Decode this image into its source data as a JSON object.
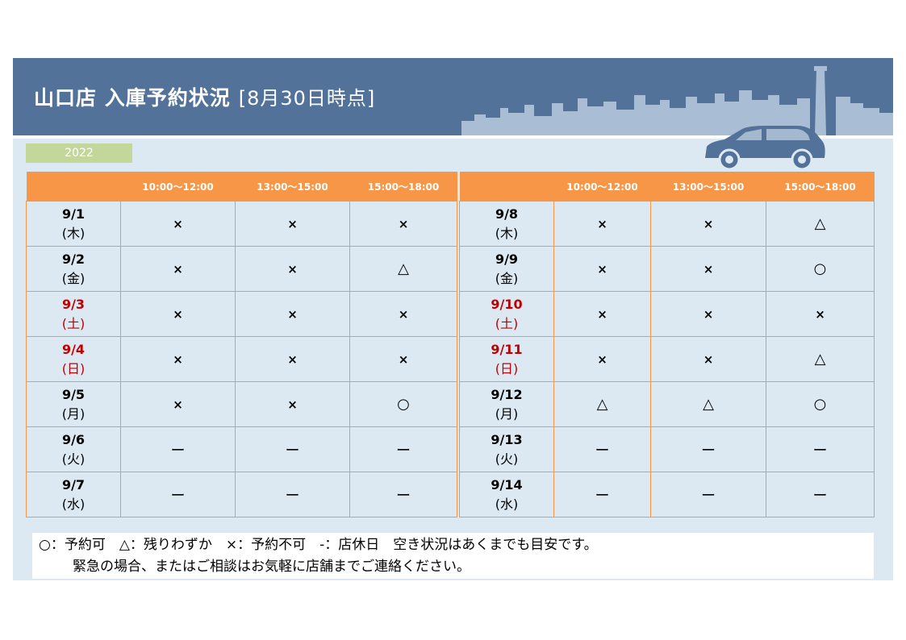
{
  "header": {
    "title": "山口店 入庫予約状況",
    "as_of": "[8月30日時点]",
    "year": "2022"
  },
  "columns": [
    "10:00～12:00",
    "13:00～15:00",
    "15:00～18:00"
  ],
  "left_table": [
    {
      "date": "9/1",
      "dow": "(木)",
      "weekend": false,
      "slots": [
        "×",
        "×",
        "×"
      ]
    },
    {
      "date": "9/2",
      "dow": "(金)",
      "weekend": false,
      "slots": [
        "×",
        "×",
        "△"
      ]
    },
    {
      "date": "9/3",
      "dow": "(土)",
      "weekend": true,
      "slots": [
        "×",
        "×",
        "×"
      ]
    },
    {
      "date": "9/4",
      "dow": "(日)",
      "weekend": true,
      "slots": [
        "×",
        "×",
        "×"
      ]
    },
    {
      "date": "9/5",
      "dow": "(月)",
      "weekend": false,
      "slots": [
        "×",
        "×",
        "○"
      ]
    },
    {
      "date": "9/6",
      "dow": "(火)",
      "weekend": false,
      "slots": [
        "ー",
        "ー",
        "ー"
      ]
    },
    {
      "date": "9/7",
      "dow": "(水)",
      "weekend": false,
      "slots": [
        "ー",
        "ー",
        "ー"
      ]
    }
  ],
  "right_table": [
    {
      "date": "9/8",
      "dow": "(木)",
      "weekend": false,
      "slots": [
        "×",
        "×",
        "△"
      ]
    },
    {
      "date": "9/9",
      "dow": "(金)",
      "weekend": false,
      "slots": [
        "×",
        "×",
        "○"
      ]
    },
    {
      "date": "9/10",
      "dow": "(土)",
      "weekend": true,
      "slots": [
        "×",
        "×",
        "×"
      ]
    },
    {
      "date": "9/11",
      "dow": "(日)",
      "weekend": true,
      "slots": [
        "×",
        "×",
        "△"
      ]
    },
    {
      "date": "9/12",
      "dow": "(月)",
      "weekend": false,
      "slots": [
        "△",
        "△",
        "○"
      ]
    },
    {
      "date": "9/13",
      "dow": "(火)",
      "weekend": false,
      "slots": [
        "ー",
        "ー",
        "ー"
      ]
    },
    {
      "date": "9/14",
      "dow": "(水)",
      "weekend": false,
      "slots": [
        "ー",
        "ー",
        "ー"
      ]
    }
  ],
  "legend": {
    "line1": "○：予約可　△：残りわずか　×：予約不可　-：店休日　空き状況はあくまでも目安です。",
    "line2": "緊急の場合、またはご相談はお気軽に店舗までご連絡ください。"
  },
  "colors": {
    "banner": "#52729a",
    "header_orange": "#f79646",
    "background": "#dde9f2",
    "weekend_red": "#c00000",
    "year_badge": "#c4d79b"
  }
}
